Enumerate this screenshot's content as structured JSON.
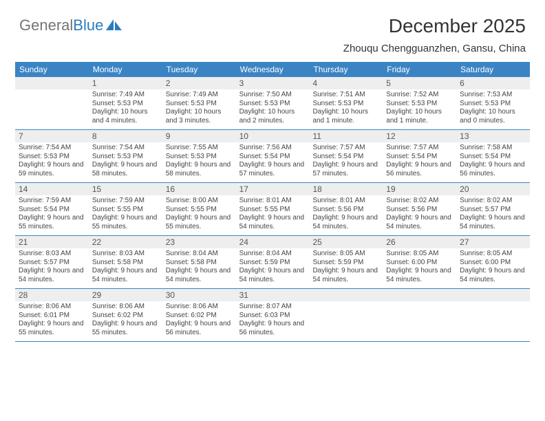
{
  "brand": {
    "part1": "General",
    "part2": "Blue"
  },
  "title": "December 2025",
  "subtitle": "Zhouqu Chengguanzhen, Gansu, China",
  "colors": {
    "header_bg": "#3b84c4",
    "header_text": "#ffffff",
    "daynum_bg": "#eeeeee",
    "daynum_text": "#555555",
    "body_text": "#444444",
    "rule": "#3b84c4",
    "logo_gray": "#757575",
    "logo_blue": "#2b7bbf",
    "page_bg": "#ffffff"
  },
  "typography": {
    "title_fontsize": 28,
    "subtitle_fontsize": 15,
    "dayheader_fontsize": 12,
    "daynum_fontsize": 12,
    "cell_fontsize": 10,
    "font_family": "Arial"
  },
  "day_names": [
    "Sunday",
    "Monday",
    "Tuesday",
    "Wednesday",
    "Thursday",
    "Friday",
    "Saturday"
  ],
  "weeks": [
    [
      {
        "day": ""
      },
      {
        "day": "1",
        "sunrise": "Sunrise: 7:49 AM",
        "sunset": "Sunset: 5:53 PM",
        "daylight": "Daylight: 10 hours and 4 minutes."
      },
      {
        "day": "2",
        "sunrise": "Sunrise: 7:49 AM",
        "sunset": "Sunset: 5:53 PM",
        "daylight": "Daylight: 10 hours and 3 minutes."
      },
      {
        "day": "3",
        "sunrise": "Sunrise: 7:50 AM",
        "sunset": "Sunset: 5:53 PM",
        "daylight": "Daylight: 10 hours and 2 minutes."
      },
      {
        "day": "4",
        "sunrise": "Sunrise: 7:51 AM",
        "sunset": "Sunset: 5:53 PM",
        "daylight": "Daylight: 10 hours and 1 minute."
      },
      {
        "day": "5",
        "sunrise": "Sunrise: 7:52 AM",
        "sunset": "Sunset: 5:53 PM",
        "daylight": "Daylight: 10 hours and 1 minute."
      },
      {
        "day": "6",
        "sunrise": "Sunrise: 7:53 AM",
        "sunset": "Sunset: 5:53 PM",
        "daylight": "Daylight: 10 hours and 0 minutes."
      }
    ],
    [
      {
        "day": "7",
        "sunrise": "Sunrise: 7:54 AM",
        "sunset": "Sunset: 5:53 PM",
        "daylight": "Daylight: 9 hours and 59 minutes."
      },
      {
        "day": "8",
        "sunrise": "Sunrise: 7:54 AM",
        "sunset": "Sunset: 5:53 PM",
        "daylight": "Daylight: 9 hours and 58 minutes."
      },
      {
        "day": "9",
        "sunrise": "Sunrise: 7:55 AM",
        "sunset": "Sunset: 5:53 PM",
        "daylight": "Daylight: 9 hours and 58 minutes."
      },
      {
        "day": "10",
        "sunrise": "Sunrise: 7:56 AM",
        "sunset": "Sunset: 5:54 PM",
        "daylight": "Daylight: 9 hours and 57 minutes."
      },
      {
        "day": "11",
        "sunrise": "Sunrise: 7:57 AM",
        "sunset": "Sunset: 5:54 PM",
        "daylight": "Daylight: 9 hours and 57 minutes."
      },
      {
        "day": "12",
        "sunrise": "Sunrise: 7:57 AM",
        "sunset": "Sunset: 5:54 PM",
        "daylight": "Daylight: 9 hours and 56 minutes."
      },
      {
        "day": "13",
        "sunrise": "Sunrise: 7:58 AM",
        "sunset": "Sunset: 5:54 PM",
        "daylight": "Daylight: 9 hours and 56 minutes."
      }
    ],
    [
      {
        "day": "14",
        "sunrise": "Sunrise: 7:59 AM",
        "sunset": "Sunset: 5:54 PM",
        "daylight": "Daylight: 9 hours and 55 minutes."
      },
      {
        "day": "15",
        "sunrise": "Sunrise: 7:59 AM",
        "sunset": "Sunset: 5:55 PM",
        "daylight": "Daylight: 9 hours and 55 minutes."
      },
      {
        "day": "16",
        "sunrise": "Sunrise: 8:00 AM",
        "sunset": "Sunset: 5:55 PM",
        "daylight": "Daylight: 9 hours and 55 minutes."
      },
      {
        "day": "17",
        "sunrise": "Sunrise: 8:01 AM",
        "sunset": "Sunset: 5:55 PM",
        "daylight": "Daylight: 9 hours and 54 minutes."
      },
      {
        "day": "18",
        "sunrise": "Sunrise: 8:01 AM",
        "sunset": "Sunset: 5:56 PM",
        "daylight": "Daylight: 9 hours and 54 minutes."
      },
      {
        "day": "19",
        "sunrise": "Sunrise: 8:02 AM",
        "sunset": "Sunset: 5:56 PM",
        "daylight": "Daylight: 9 hours and 54 minutes."
      },
      {
        "day": "20",
        "sunrise": "Sunrise: 8:02 AM",
        "sunset": "Sunset: 5:57 PM",
        "daylight": "Daylight: 9 hours and 54 minutes."
      }
    ],
    [
      {
        "day": "21",
        "sunrise": "Sunrise: 8:03 AM",
        "sunset": "Sunset: 5:57 PM",
        "daylight": "Daylight: 9 hours and 54 minutes."
      },
      {
        "day": "22",
        "sunrise": "Sunrise: 8:03 AM",
        "sunset": "Sunset: 5:58 PM",
        "daylight": "Daylight: 9 hours and 54 minutes."
      },
      {
        "day": "23",
        "sunrise": "Sunrise: 8:04 AM",
        "sunset": "Sunset: 5:58 PM",
        "daylight": "Daylight: 9 hours and 54 minutes."
      },
      {
        "day": "24",
        "sunrise": "Sunrise: 8:04 AM",
        "sunset": "Sunset: 5:59 PM",
        "daylight": "Daylight: 9 hours and 54 minutes."
      },
      {
        "day": "25",
        "sunrise": "Sunrise: 8:05 AM",
        "sunset": "Sunset: 5:59 PM",
        "daylight": "Daylight: 9 hours and 54 minutes."
      },
      {
        "day": "26",
        "sunrise": "Sunrise: 8:05 AM",
        "sunset": "Sunset: 6:00 PM",
        "daylight": "Daylight: 9 hours and 54 minutes."
      },
      {
        "day": "27",
        "sunrise": "Sunrise: 8:05 AM",
        "sunset": "Sunset: 6:00 PM",
        "daylight": "Daylight: 9 hours and 54 minutes."
      }
    ],
    [
      {
        "day": "28",
        "sunrise": "Sunrise: 8:06 AM",
        "sunset": "Sunset: 6:01 PM",
        "daylight": "Daylight: 9 hours and 55 minutes."
      },
      {
        "day": "29",
        "sunrise": "Sunrise: 8:06 AM",
        "sunset": "Sunset: 6:02 PM",
        "daylight": "Daylight: 9 hours and 55 minutes."
      },
      {
        "day": "30",
        "sunrise": "Sunrise: 8:06 AM",
        "sunset": "Sunset: 6:02 PM",
        "daylight": "Daylight: 9 hours and 56 minutes."
      },
      {
        "day": "31",
        "sunrise": "Sunrise: 8:07 AM",
        "sunset": "Sunset: 6:03 PM",
        "daylight": "Daylight: 9 hours and 56 minutes."
      },
      {
        "day": ""
      },
      {
        "day": ""
      },
      {
        "day": ""
      }
    ]
  ]
}
